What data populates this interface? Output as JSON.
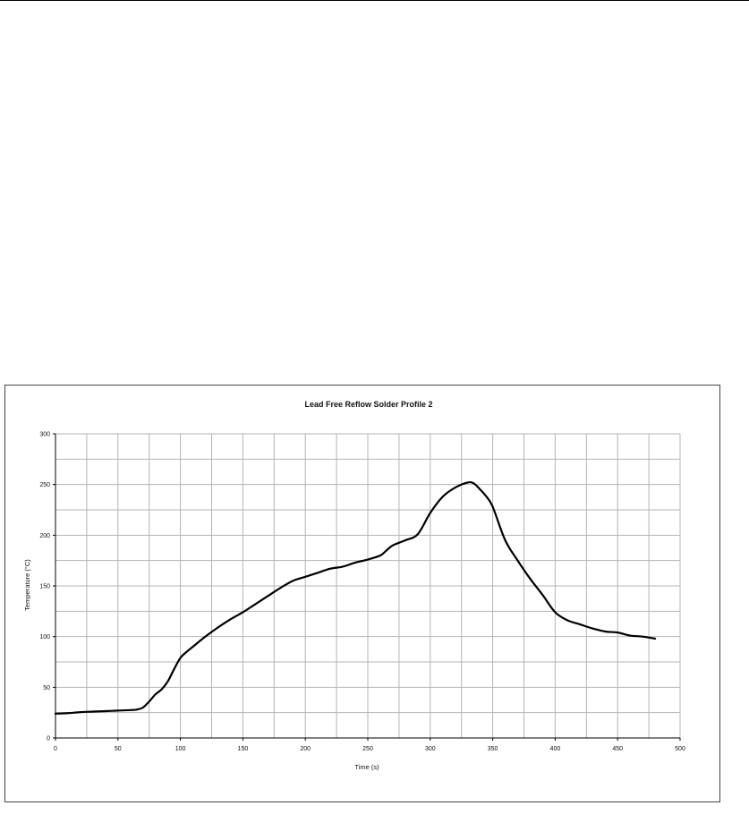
{
  "chart_data": {
    "type": "line",
    "title": "Lead Free Reflow Solder Profile 2",
    "xlabel": "Time (s)",
    "ylabel": "Temperature (°C)",
    "xlim": [
      0,
      500
    ],
    "ylim": [
      0,
      300
    ],
    "x_ticks": [
      "0",
      "50",
      "100",
      "150",
      "200",
      "250",
      "300",
      "350",
      "400",
      "450",
      "500"
    ],
    "y_ticks": [
      "0",
      "50",
      "100",
      "150",
      "200",
      "250",
      "300"
    ],
    "x_grid_step": 25,
    "y_grid_step": 25,
    "grid": true,
    "line_color": "#000000",
    "series": [
      {
        "x": [
          0,
          10,
          20,
          30,
          40,
          50,
          60,
          65,
          70,
          75,
          80,
          85,
          90,
          95,
          100,
          105,
          110,
          120,
          130,
          140,
          150,
          160,
          170,
          180,
          190,
          200,
          210,
          220,
          230,
          240,
          250,
          260,
          265,
          270,
          280,
          290,
          300,
          310,
          320,
          330,
          335,
          340,
          345,
          350,
          360,
          370,
          380,
          390,
          400,
          410,
          420,
          430,
          440,
          450,
          460,
          470,
          480
        ],
        "y": [
          24,
          24.5,
          25.5,
          26,
          26.5,
          27,
          27.5,
          28,
          30,
          36,
          43,
          48,
          56,
          68,
          79,
          85,
          90,
          100,
          109,
          117,
          124,
          132,
          140,
          148,
          155,
          159,
          163,
          167,
          169,
          173,
          176,
          180,
          185,
          190,
          195,
          201,
          222,
          238,
          247,
          252,
          251,
          245,
          238,
          228,
          195,
          175,
          157,
          141,
          124,
          116,
          112,
          108,
          105,
          104,
          101,
          100,
          98
        ]
      }
    ]
  }
}
